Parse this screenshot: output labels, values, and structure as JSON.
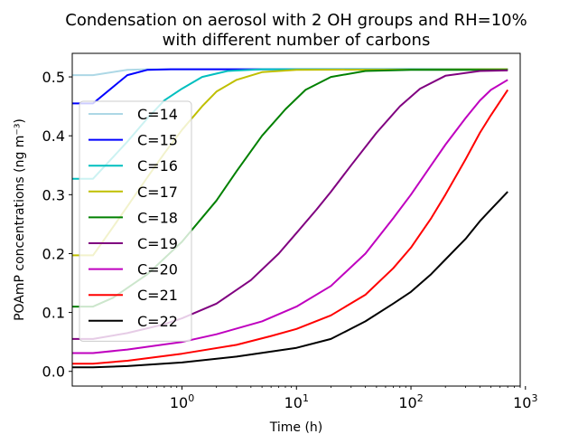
{
  "chart_data": {
    "type": "line",
    "title_lines": [
      "Condensation on aerosol with 2 OH groups and RH=10%",
      "with different number of carbons"
    ],
    "xlabel": "Time (h)",
    "ylabel": "POAmP concentrations (ng m⁻³)",
    "x_scale": "log",
    "xlim": [
      0.11,
      900
    ],
    "ylim": [
      -0.025,
      0.54
    ],
    "x_ticks": [
      {
        "value": 1,
        "mant": "10",
        "exp": "0"
      },
      {
        "value": 10,
        "mant": "10",
        "exp": "1"
      },
      {
        "value": 100,
        "mant": "10",
        "exp": "2"
      },
      {
        "value": 1000,
        "mant": "10",
        "exp": "3"
      }
    ],
    "y_ticks": [
      0.0,
      0.1,
      0.2,
      0.3,
      0.4,
      0.5
    ],
    "y_tick_labels": [
      "0.0",
      "0.1",
      "0.2",
      "0.3",
      "0.4",
      "0.5"
    ],
    "grid": false,
    "legend_position": "left",
    "series": [
      {
        "name": "C=14",
        "color": "#add8e6",
        "points": [
          [
            0.11,
            0.503
          ],
          [
            0.167,
            0.503
          ],
          [
            0.333,
            0.512
          ],
          [
            0.5,
            0.513
          ],
          [
            700,
            0.513
          ]
        ]
      },
      {
        "name": "C=15",
        "color": "#0000ff",
        "points": [
          [
            0.11,
            0.455
          ],
          [
            0.167,
            0.455
          ],
          [
            0.333,
            0.503
          ],
          [
            0.5,
            0.512
          ],
          [
            0.8,
            0.513
          ],
          [
            700,
            0.513
          ]
        ]
      },
      {
        "name": "C=16",
        "color": "#00bfbf",
        "points": [
          [
            0.11,
            0.327
          ],
          [
            0.167,
            0.327
          ],
          [
            0.333,
            0.39
          ],
          [
            0.5,
            0.43
          ],
          [
            0.7,
            0.46
          ],
          [
            1,
            0.48
          ],
          [
            1.5,
            0.5
          ],
          [
            2.5,
            0.51
          ],
          [
            5,
            0.513
          ],
          [
            700,
            0.513
          ]
        ]
      },
      {
        "name": "C=17",
        "color": "#bfbf00",
        "points": [
          [
            0.11,
            0.197
          ],
          [
            0.167,
            0.197
          ],
          [
            0.25,
            0.245
          ],
          [
            0.333,
            0.28
          ],
          [
            0.5,
            0.33
          ],
          [
            0.7,
            0.37
          ],
          [
            1,
            0.41
          ],
          [
            1.5,
            0.45
          ],
          [
            2,
            0.475
          ],
          [
            3,
            0.495
          ],
          [
            5,
            0.508
          ],
          [
            10,
            0.512
          ],
          [
            700,
            0.513
          ]
        ]
      },
      {
        "name": "C=18",
        "color": "#008000",
        "points": [
          [
            0.11,
            0.11
          ],
          [
            0.167,
            0.11
          ],
          [
            0.25,
            0.125
          ],
          [
            0.5,
            0.165
          ],
          [
            1,
            0.22
          ],
          [
            2,
            0.29
          ],
          [
            3,
            0.34
          ],
          [
            5,
            0.4
          ],
          [
            8,
            0.445
          ],
          [
            12,
            0.478
          ],
          [
            20,
            0.5
          ],
          [
            40,
            0.51
          ],
          [
            100,
            0.512
          ],
          [
            700,
            0.512
          ]
        ]
      },
      {
        "name": "C=19",
        "color": "#800080",
        "points": [
          [
            0.11,
            0.055
          ],
          [
            0.167,
            0.055
          ],
          [
            0.333,
            0.065
          ],
          [
            0.7,
            0.08
          ],
          [
            1,
            0.09
          ],
          [
            2,
            0.115
          ],
          [
            4,
            0.155
          ],
          [
            7,
            0.2
          ],
          [
            10,
            0.235
          ],
          [
            15,
            0.275
          ],
          [
            20,
            0.305
          ],
          [
            30,
            0.35
          ],
          [
            50,
            0.405
          ],
          [
            80,
            0.45
          ],
          [
            120,
            0.48
          ],
          [
            200,
            0.502
          ],
          [
            400,
            0.51
          ],
          [
            700,
            0.511
          ]
        ]
      },
      {
        "name": "C=20",
        "color": "#bf00bf",
        "points": [
          [
            0.11,
            0.031
          ],
          [
            0.167,
            0.031
          ],
          [
            0.333,
            0.037
          ],
          [
            1,
            0.05
          ],
          [
            2,
            0.063
          ],
          [
            5,
            0.085
          ],
          [
            10,
            0.11
          ],
          [
            20,
            0.145
          ],
          [
            40,
            0.2
          ],
          [
            70,
            0.26
          ],
          [
            100,
            0.3
          ],
          [
            150,
            0.35
          ],
          [
            200,
            0.385
          ],
          [
            300,
            0.43
          ],
          [
            400,
            0.46
          ],
          [
            500,
            0.478
          ],
          [
            700,
            0.495
          ]
        ]
      },
      {
        "name": "C=21",
        "color": "#ff0000",
        "points": [
          [
            0.11,
            0.013
          ],
          [
            0.167,
            0.013
          ],
          [
            0.333,
            0.018
          ],
          [
            1,
            0.03
          ],
          [
            3,
            0.045
          ],
          [
            6,
            0.06
          ],
          [
            10,
            0.072
          ],
          [
            20,
            0.095
          ],
          [
            40,
            0.13
          ],
          [
            70,
            0.175
          ],
          [
            100,
            0.21
          ],
          [
            150,
            0.26
          ],
          [
            200,
            0.3
          ],
          [
            300,
            0.36
          ],
          [
            400,
            0.405
          ],
          [
            500,
            0.435
          ],
          [
            700,
            0.478
          ]
        ]
      },
      {
        "name": "C=22",
        "color": "#000000",
        "points": [
          [
            0.11,
            0.007
          ],
          [
            0.167,
            0.007
          ],
          [
            0.333,
            0.009
          ],
          [
            1,
            0.015
          ],
          [
            3,
            0.025
          ],
          [
            10,
            0.04
          ],
          [
            20,
            0.055
          ],
          [
            40,
            0.085
          ],
          [
            70,
            0.115
          ],
          [
            100,
            0.135
          ],
          [
            150,
            0.165
          ],
          [
            200,
            0.19
          ],
          [
            300,
            0.225
          ],
          [
            400,
            0.255
          ],
          [
            500,
            0.275
          ],
          [
            700,
            0.305
          ]
        ]
      }
    ]
  }
}
